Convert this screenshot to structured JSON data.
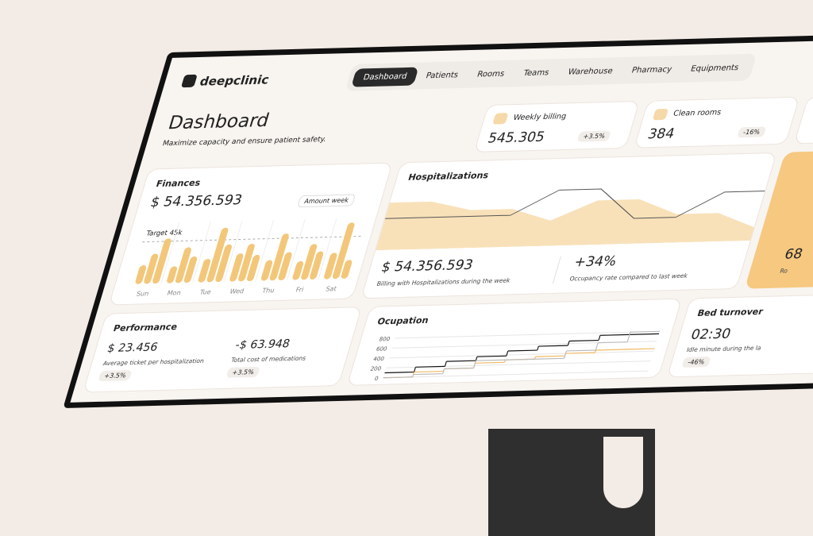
{
  "brand": "deepclinic",
  "nav": [
    "Dashboard",
    "Patients",
    "Rooms",
    "Teams",
    "Warehouse",
    "Pharmacy",
    "Equipments"
  ],
  "header": {
    "title": "Dashboard",
    "subtitle": "Maximize capacity and ensure patient safety."
  },
  "kpis": [
    {
      "label": "Weekly billing",
      "value": "545.305",
      "change": "+3.5%"
    },
    {
      "label": "Clean rooms",
      "value": "384",
      "change": "-16%"
    }
  ],
  "side_card": {
    "value": "68",
    "label": "Ro"
  },
  "performance": {
    "title": "Performance",
    "items": [
      {
        "value": "$ 23.456",
        "label": "Average ticket per hospitalization",
        "change": "+3.5%"
      },
      {
        "value": "-$ 63.948",
        "label": "Total cost of medications",
        "change": "+3.5%"
      }
    ]
  },
  "bed_turnover": {
    "title": "Bed turnover",
    "value": "02:30",
    "label": "Idle minute during the la",
    "change": "-46%"
  },
  "chart_data": [
    {
      "type": "bar",
      "title": "Finances",
      "total": "$ 54.356.593",
      "badge": "Amount week",
      "categories": [
        "Sun",
        "Mon",
        "Tue",
        "Wed",
        "Thu",
        "Fri",
        "Sat"
      ],
      "series": [
        {
          "color": "#f3c77a",
          "values": [
            20,
            18,
            25,
            30,
            22,
            20,
            28
          ]
        },
        {
          "color": "#f3c77a",
          "values": [
            32,
            38,
            58,
            40,
            50,
            38,
            60
          ]
        },
        {
          "color": "#f3c77a",
          "values": [
            48,
            28,
            40,
            28,
            30,
            30,
            20
          ]
        }
      ],
      "target": {
        "value": 45,
        "label": "Target 45k"
      },
      "ylim": [
        0,
        65
      ]
    },
    {
      "type": "area",
      "title": "Hospitalizations",
      "categories": [
        null,
        null,
        null,
        null,
        null,
        null,
        null,
        null,
        null,
        null
      ],
      "series": [
        {
          "color": "#f6d9a8",
          "values": [
            75,
            75,
            60,
            60,
            40,
            70,
            70,
            45,
            45,
            20
          ]
        },
        {
          "color": "#555555",
          "values": [
            50,
            50,
            50,
            50,
            88,
            88,
            40,
            40,
            78,
            78
          ]
        }
      ],
      "stats": [
        {
          "value": "$ 54.356.593",
          "label": "Billing with Hospitalizations during the week"
        },
        {
          "value": "+34%",
          "label": "Occupancy rate compared to last week"
        }
      ],
      "ylim": [
        0,
        100
      ]
    },
    {
      "type": "step",
      "title": "Ocupation",
      "categories": [
        null,
        null,
        null,
        null,
        null,
        null,
        null,
        null,
        null
      ],
      "series": [
        {
          "color": "#111111",
          "values": [
            100,
            200,
            300,
            380,
            480,
            560,
            650,
            750,
            750
          ]
        },
        {
          "color": "#f0b860",
          "values": [
            0,
            100,
            150,
            250,
            300,
            350,
            400,
            450,
            450
          ]
        },
        {
          "color": "#bbbbbb",
          "values": [
            0,
            50,
            150,
            300,
            300,
            300,
            450,
            600,
            800
          ]
        }
      ],
      "ylim": [
        0,
        900
      ],
      "yticks": [
        0,
        200,
        400,
        600,
        800
      ],
      "grid": true
    }
  ]
}
